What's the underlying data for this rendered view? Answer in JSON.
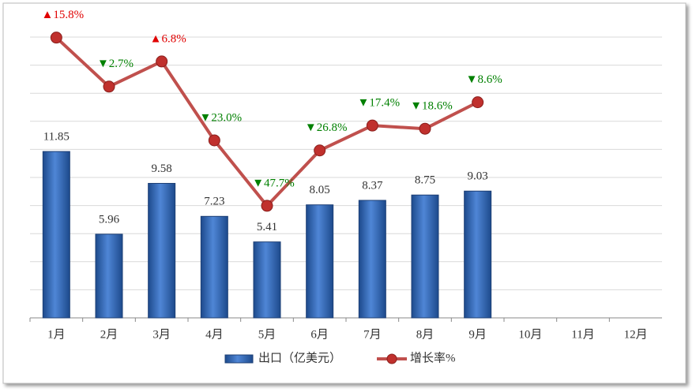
{
  "chart_data": {
    "type": "bar_line",
    "categories": [
      "1月",
      "2月",
      "3月",
      "4月",
      "5月",
      "6月",
      "7月",
      "8月",
      "9月",
      "10月",
      "11月",
      "12月"
    ],
    "series": [
      {
        "name": "出口（亿美元）",
        "type": "bar",
        "color": "#2e64b4",
        "values": [
          11.85,
          5.96,
          9.58,
          7.23,
          5.41,
          8.05,
          8.37,
          8.75,
          9.03,
          null,
          null,
          null
        ]
      },
      {
        "name": "增长率%",
        "type": "line",
        "axis": "y2",
        "color": "#c0504d",
        "marker_color": "#c0302d",
        "values": [
          15.8,
          -2.7,
          6.8,
          -23.0,
          -47.7,
          -26.8,
          -17.4,
          -18.6,
          -8.6,
          null,
          null,
          null
        ],
        "value_labels": [
          "▲15.8%",
          "▼2.7%",
          "▲6.8%",
          "▼23.0%",
          "▼47.7%",
          "▼26.8%",
          "▼17.4%",
          "▼18.6%",
          "▼8.6%",
          null,
          null,
          null
        ],
        "up_color": "#e00000",
        "down_color": "#008000"
      }
    ],
    "ylim": [
      0,
      20
    ],
    "yticks": [
      0,
      2,
      4,
      6,
      8,
      10,
      12,
      14,
      16,
      18,
      20
    ],
    "ytick_labels": false,
    "y2lim": [
      -90,
      16
    ],
    "grid": true,
    "legend": "bottom"
  }
}
